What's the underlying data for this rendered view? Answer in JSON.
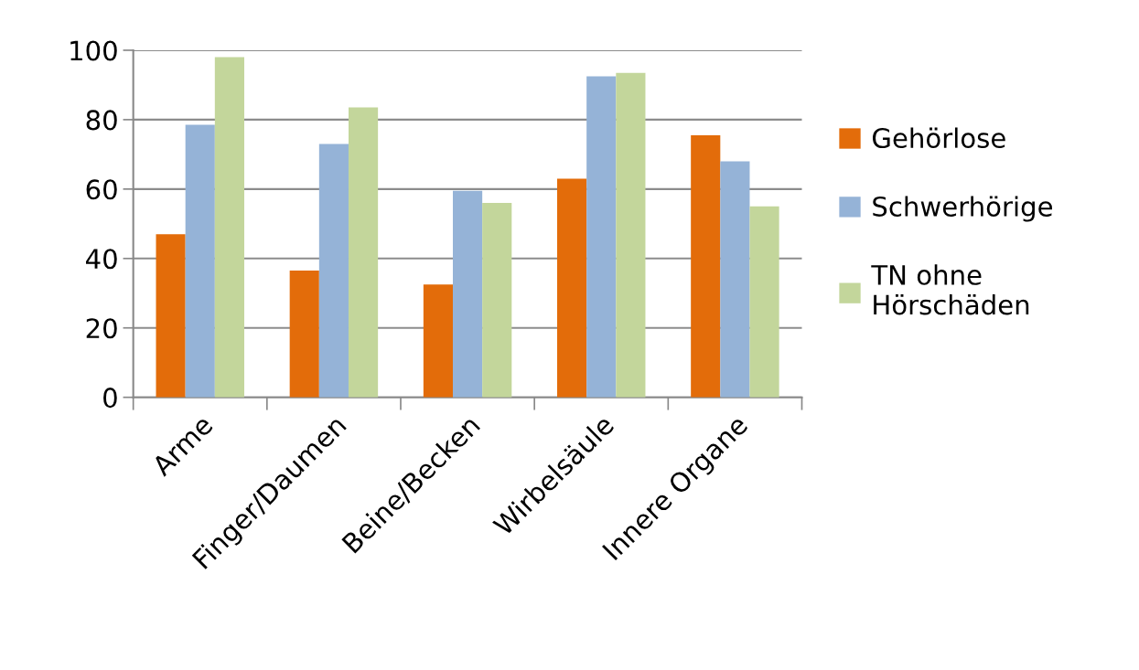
{
  "chart_data": {
    "type": "bar",
    "categories": [
      "Arme",
      "Finger/Daumen",
      "Beine/Becken",
      "Wirbelsäule",
      "Innere Organe"
    ],
    "series": [
      {
        "name": "Gehörlose",
        "color": "#e36c0a",
        "values": [
          47,
          36.5,
          32.5,
          63,
          75.5
        ]
      },
      {
        "name": "Schwerhörige",
        "color": "#95b3d7",
        "values": [
          78.5,
          73,
          59.5,
          92.5,
          68
        ]
      },
      {
        "name": "TN ohne\nHörschäden",
        "color": "#c3d69b",
        "values": [
          98,
          83.5,
          56,
          93.5,
          55
        ]
      }
    ],
    "ylim": [
      0,
      100
    ],
    "yticks": [
      0,
      20,
      40,
      60,
      80,
      100
    ],
    "grid": "y",
    "legend": "right"
  }
}
